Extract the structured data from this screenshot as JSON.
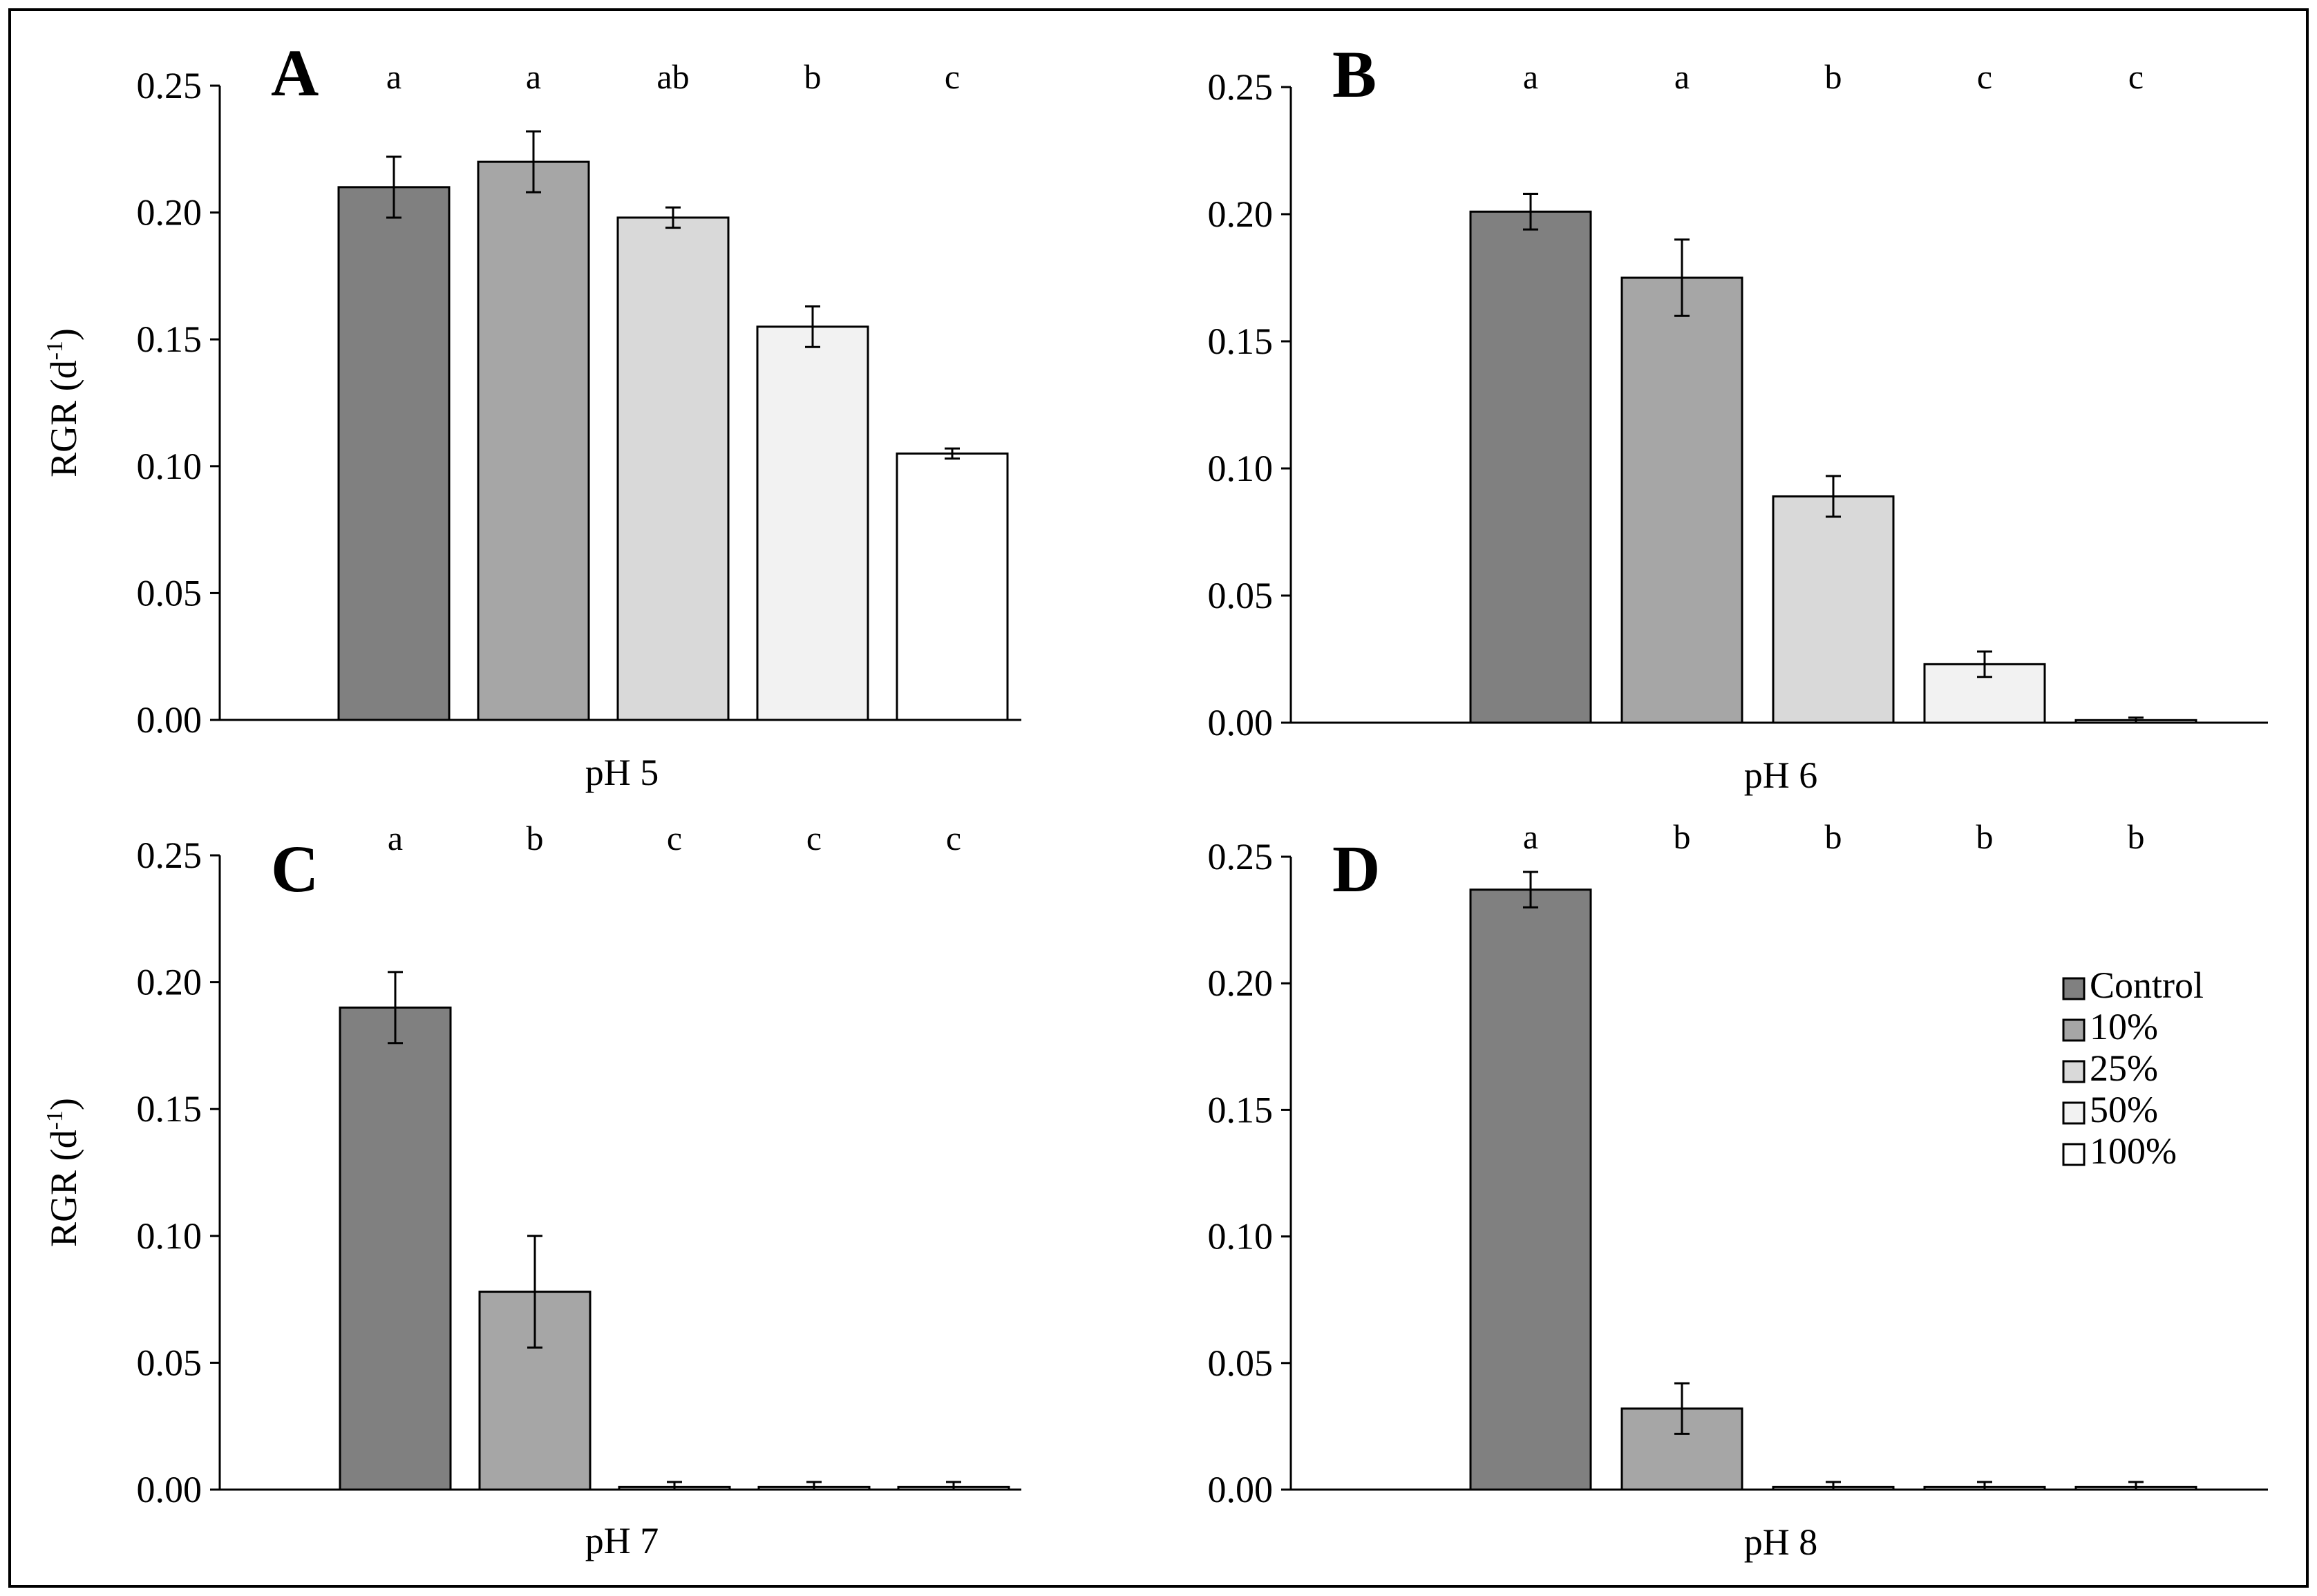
{
  "colors": {
    "Control": "#808080",
    "10%": "#a6a6a6",
    "25%": "#d9d9d9",
    "50%": "#f2f2f2",
    "100%": "#ffffff"
  },
  "legend": [
    "Control",
    "10%",
    "25%",
    "50%",
    "100%"
  ],
  "chart_data": [
    {
      "type": "bar",
      "panel": "A",
      "xlabel": "pH 5",
      "ylabel": "RGR (d-1)",
      "ylim": [
        0,
        0.25
      ],
      "yticks": [
        "0.00",
        "0.05",
        "0.10",
        "0.15",
        "0.20",
        "0.25"
      ],
      "categories": [
        "Control",
        "10%",
        "25%",
        "50%",
        "100%"
      ],
      "values": [
        0.21,
        0.22,
        0.198,
        0.155,
        0.105
      ],
      "errors": [
        0.012,
        0.012,
        0.004,
        0.008,
        0.002
      ],
      "significance": [
        "a",
        "a",
        "ab",
        "b",
        "c"
      ]
    },
    {
      "type": "bar",
      "panel": "B",
      "xlabel": "pH 6",
      "ylabel": "",
      "ylim": [
        0,
        0.25
      ],
      "yticks": [
        "0.00",
        "0.05",
        "0.10",
        "0.15",
        "0.20",
        "0.25"
      ],
      "categories": [
        "Control",
        "10%",
        "25%",
        "50%",
        "100%"
      ],
      "values": [
        0.201,
        0.175,
        0.089,
        0.023,
        0.001
      ],
      "errors": [
        0.007,
        0.015,
        0.008,
        0.005,
        0.001
      ],
      "significance": [
        "a",
        "a",
        "b",
        "c",
        "c"
      ]
    },
    {
      "type": "bar",
      "panel": "C",
      "xlabel": "pH 7",
      "ylabel": "RGR (d-1)",
      "ylim": [
        0,
        0.25
      ],
      "yticks": [
        "0.00",
        "0.05",
        "0.10",
        "0.15",
        "0.20",
        "0.25"
      ],
      "categories": [
        "Control",
        "10%",
        "25%",
        "50%",
        "100%"
      ],
      "values": [
        0.19,
        0.078,
        0.001,
        0.001,
        0.001
      ],
      "errors": [
        0.014,
        0.022,
        0.002,
        0.002,
        0.002
      ],
      "significance": [
        "a",
        "b",
        "c",
        "c",
        "c"
      ]
    },
    {
      "type": "bar",
      "panel": "D",
      "xlabel": "pH 8",
      "ylabel": "",
      "ylim": [
        0,
        0.25
      ],
      "yticks": [
        "0.00",
        "0.05",
        "0.10",
        "0.15",
        "0.20",
        "0.25"
      ],
      "categories": [
        "Control",
        "10%",
        "25%",
        "50%",
        "100%"
      ],
      "values": [
        0.237,
        0.032,
        0.001,
        0.001,
        0.001
      ],
      "errors": [
        0.007,
        0.01,
        0.002,
        0.002,
        0.002
      ],
      "significance": [
        "a",
        "b",
        "b",
        "b",
        "b"
      ]
    }
  ]
}
